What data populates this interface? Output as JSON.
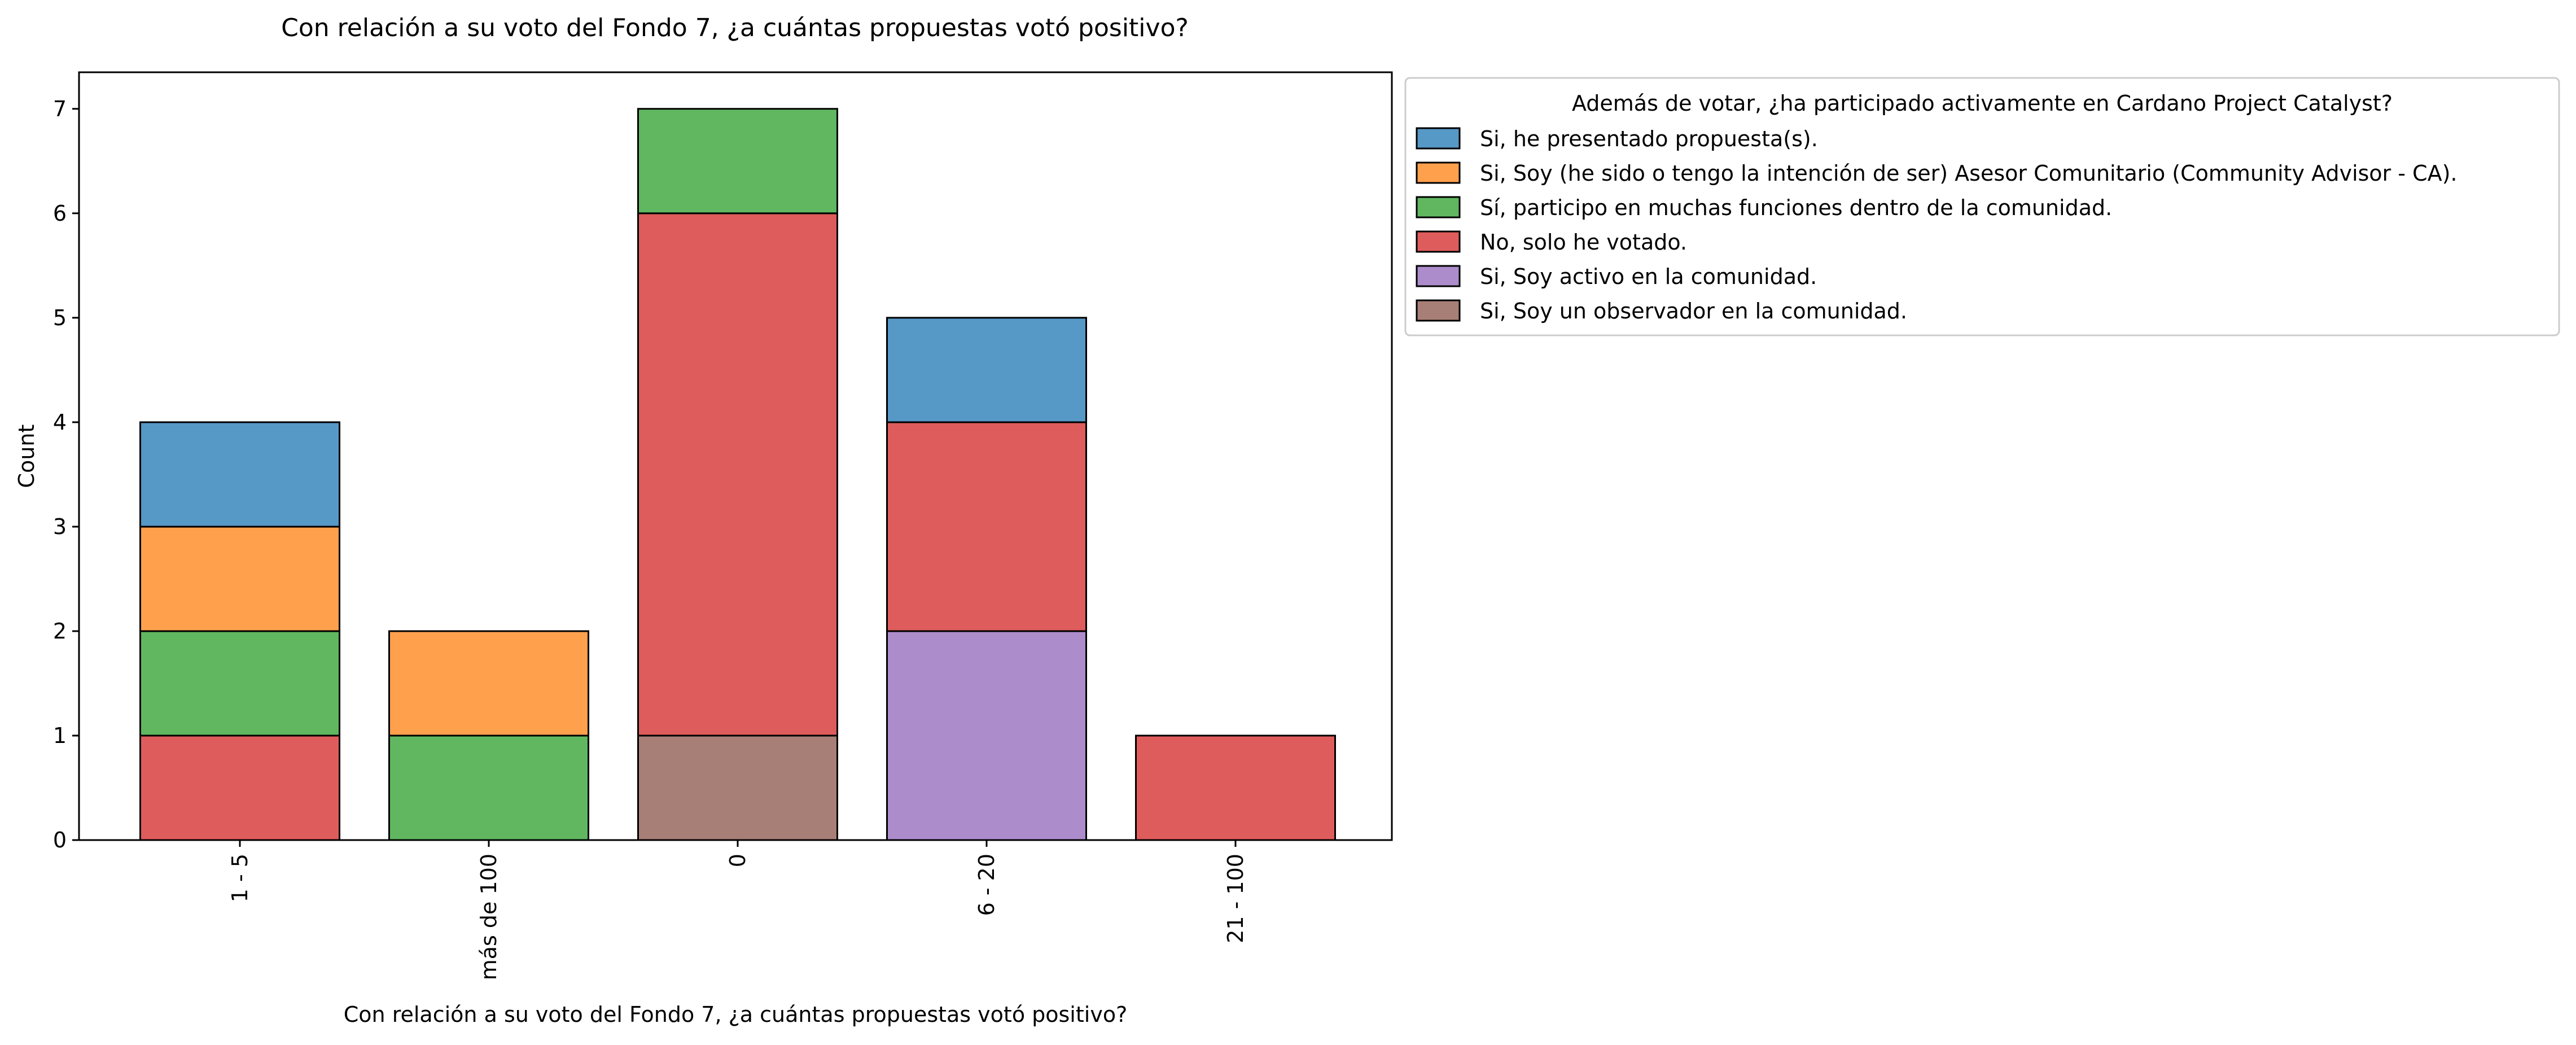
{
  "chart_data": {
    "type": "bar",
    "stacked": true,
    "title": "Con relación a su voto del Fondo 7, ¿a cuántas propuestas votó positivo?",
    "xlabel": "Con relación a su voto del Fondo 7, ¿a cuántas propuestas votó positivo?",
    "ylabel": "Count",
    "categories": [
      "1 - 5",
      "más de 100",
      "0",
      "6 - 20",
      "21 - 100"
    ],
    "ylim": [
      0,
      7.35
    ],
    "yticks": [
      0,
      1,
      2,
      3,
      4,
      5,
      6,
      7
    ],
    "grid": false,
    "legend": {
      "title": "Además de votar, ¿ha participado activamente en Cardano Project Catalyst?",
      "placement": "outside right, top"
    },
    "stack_order": [
      "Si, Soy un observador en la comunidad.",
      "Si, Soy activo en la comunidad.",
      "No, solo he votado.",
      "Sí, participo en muchas funciones dentro de la comunidad.",
      "Si, Soy (he sido o tengo la intención de ser) Asesor Comunitario (Community Advisor - CA).",
      "Si, he presentado propuesta(s)."
    ],
    "series": [
      {
        "name": "Si, he presentado propuesta(s).",
        "color": "#5698c6",
        "values": [
          1,
          0,
          0,
          1,
          0
        ]
      },
      {
        "name": "Si, Soy (he sido o tengo la intención de ser) Asesor Comunitario (Community Advisor - CA).",
        "color": "#ffa04d",
        "values": [
          1,
          1,
          0,
          0,
          0
        ]
      },
      {
        "name": "Sí, participo en muchas funciones dentro de la comunidad.",
        "color": "#60b760",
        "values": [
          1,
          1,
          1,
          0,
          0
        ]
      },
      {
        "name": "No, solo he votado.",
        "color": "#df5c5c",
        "values": [
          1,
          0,
          5,
          2,
          1
        ]
      },
      {
        "name": "Si, Soy activo en la comunidad.",
        "color": "#ad8ccc",
        "values": [
          0,
          0,
          0,
          2,
          0
        ]
      },
      {
        "name": "Si, Soy un observador en la comunidad.",
        "color": "#a87f76",
        "values": [
          0,
          0,
          1,
          0,
          0
        ]
      }
    ]
  }
}
